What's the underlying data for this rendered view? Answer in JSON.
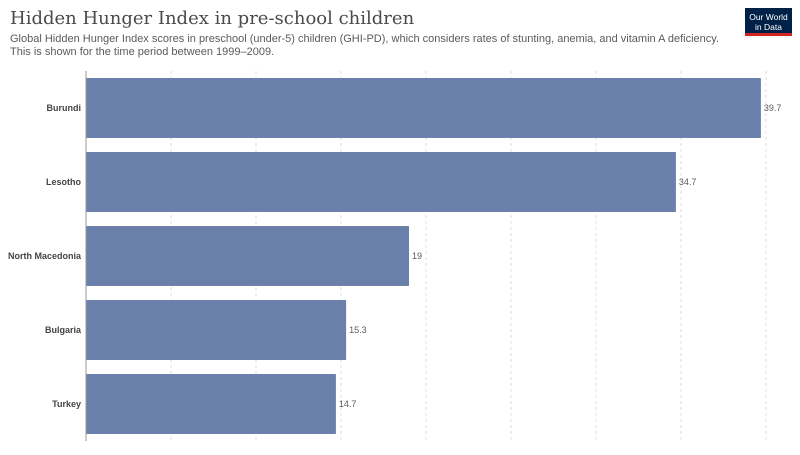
{
  "header": {
    "title": "Hidden Hunger Index in pre-school children",
    "subtitle": "Global Hidden Hunger Index scores in preschool (under-5) children (GHI-PD), which considers rates of stunting, anemia, and vitamin A deficiency. This is shown for the time period between 1999–2009."
  },
  "logo": {
    "line1": "Our World",
    "line2": "in Data",
    "bg_color": "#002147",
    "accent_color": "#ce261e"
  },
  "chart_data": {
    "type": "bar",
    "orientation": "horizontal",
    "categories": [
      "Burundi",
      "Lesotho",
      "North Macedonia",
      "Bulgaria",
      "Turkey"
    ],
    "values": [
      39.7,
      34.7,
      19,
      15.3,
      14.7
    ],
    "value_labels": [
      "39.7",
      "34.7",
      "19",
      "15.3",
      "14.7"
    ],
    "xlim": [
      0,
      40
    ],
    "grid": true,
    "bar_color": "#6a7fa9",
    "gridline_color": "#dddddd"
  }
}
